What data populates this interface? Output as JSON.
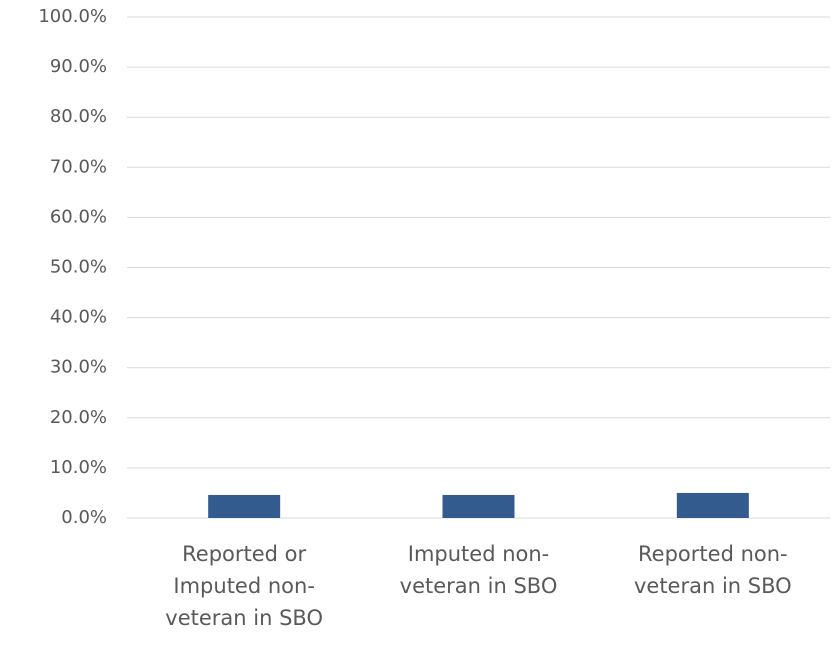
{
  "chart_data": {
    "type": "bar",
    "categories": [
      "Reported or Imputed non-veteran in SBO",
      "Imputed non-veteran in SBO",
      "Reported non-veteran in SBO"
    ],
    "values": [
      4.6,
      4.6,
      5.0
    ],
    "color": "#335b8e",
    "ylim": [
      0,
      100
    ],
    "yticks": [
      {
        "value": 0,
        "label": "0.0%"
      },
      {
        "value": 10,
        "label": "10.0%"
      },
      {
        "value": 20,
        "label": "20.0%"
      },
      {
        "value": 30,
        "label": "30.0%"
      },
      {
        "value": 40,
        "label": "40.0%"
      },
      {
        "value": 50,
        "label": "50.0%"
      },
      {
        "value": 60,
        "label": "60.0%"
      },
      {
        "value": 70,
        "label": "70.0%"
      },
      {
        "value": 80,
        "label": "80.0%"
      },
      {
        "value": 90,
        "label": "90.0%"
      },
      {
        "value": 100,
        "label": "100.0%"
      }
    ],
    "grid": true
  }
}
